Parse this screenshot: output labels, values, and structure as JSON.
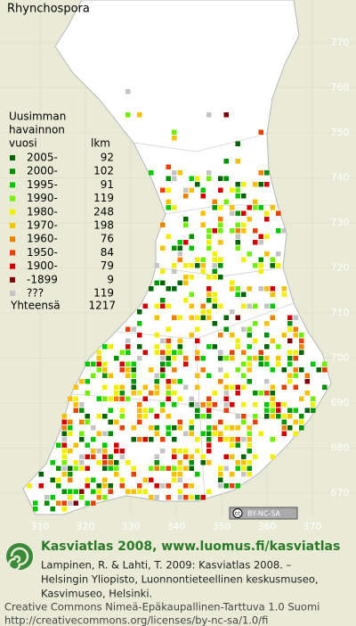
{
  "title": "Rhynchospora",
  "legend": {
    "heading": [
      "Uusimman",
      "havainnon",
      "vuosi"
    ],
    "count_heading": "lkm",
    "rows": [
      {
        "label": "2005-",
        "count": 92,
        "color": "#006400"
      },
      {
        "label": "2000-",
        "count": 102,
        "color": "#009000"
      },
      {
        "label": "1995-",
        "count": 91,
        "color": "#00c800"
      },
      {
        "label": "1990-",
        "count": 119,
        "color": "#70f000"
      },
      {
        "label": "1980-",
        "count": 248,
        "color": "#f0f000"
      },
      {
        "label": "1970-",
        "count": 198,
        "color": "#f8c000"
      },
      {
        "label": "1960-",
        "count": 76,
        "color": "#f08000"
      },
      {
        "label": "1950-",
        "count": 84,
        "color": "#e84000"
      },
      {
        "label": "1900-",
        "count": 79,
        "color": "#d00000"
      },
      {
        "label": "-1899",
        "count": 9,
        "color": "#800000"
      },
      {
        "label": "???",
        "count": 119,
        "color": "#c4c4c4"
      }
    ],
    "total_label": "Yhteensä",
    "total": 1217
  },
  "map": {
    "y_labels": [
      770,
      760,
      750,
      740,
      730,
      720,
      710,
      700,
      690,
      680,
      670
    ],
    "x_labels": [
      310,
      320,
      330,
      340,
      350,
      360,
      370
    ],
    "badge": {
      "symbol": "cc",
      "text": "BY-NC-SA"
    }
  },
  "footer": {
    "heading": "Kasviatlas 2008, www.luomus.fi/kasviatlas",
    "citation": [
      "Lampinen, R. & Lahti, T. 2009: Kasviatlas 2008. –",
      "Helsingin Yliopisto, Luonnontieteellinen keskusmuseo,",
      "Kasvimuseo, Helsinki."
    ],
    "license": [
      "Creative Commons Nimeä-Epäkaupallinen-Tarttuva 1.0 Suomi",
      "http://creativecommons.org/licenses/by-nc-sa/1.0/fi"
    ]
  }
}
